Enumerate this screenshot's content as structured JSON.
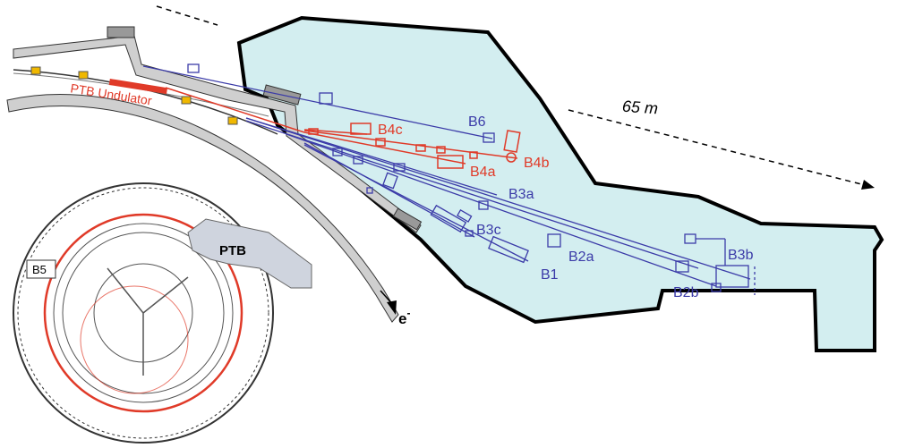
{
  "labels": {
    "distance": "65 m",
    "undulator": "PTB Undulator",
    "ptb": "PTB",
    "electron": "e",
    "electron_sup": "-",
    "b5": "B5"
  },
  "beamlines": {
    "B6": "B6",
    "B4c": "B4c",
    "B4b": "B4b",
    "B4a": "B4a",
    "B3a": "B3a",
    "B3c": "B3c",
    "B2a": "B2a",
    "B1": "B1",
    "B3b": "B3b",
    "B2b": "B2b"
  },
  "colors": {
    "hall": "#d3eef0",
    "blue": "#3b3ba8",
    "red": "#e03a28",
    "wall": "#cfcfcf",
    "magnet": "#f0b800"
  }
}
